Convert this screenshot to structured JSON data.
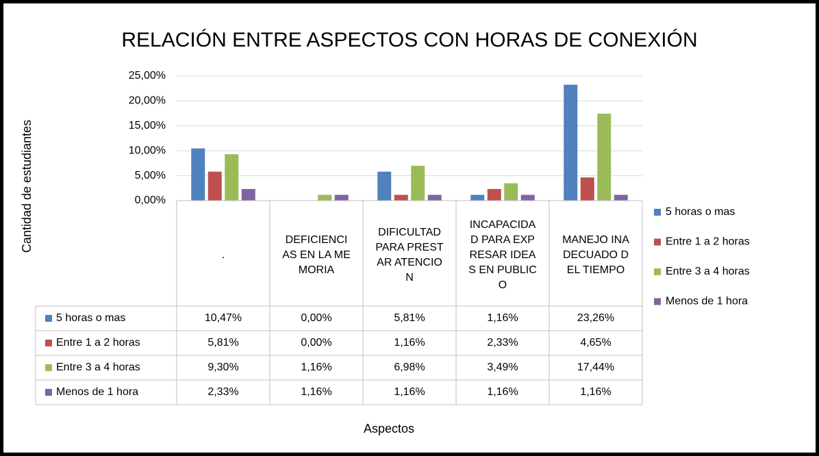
{
  "chart_data": {
    "type": "bar",
    "title": "RELACIÓN ENTRE ASPECTOS CON HORAS DE CONEXIÓN",
    "x_label": "Aspectos",
    "y_label": "Cantidad de estudiantes",
    "categories": [
      ".",
      "DEFICIENCIAS EN LA MEMORIA",
      "DIFICULTAD PARA PRESTAR ATENCION",
      "INCAPACIDAD PARA EXPRESAR IDEAS EN PUBLICO",
      "MANEJO INADECUADO DEL TIEMPO"
    ],
    "series": [
      {
        "name": "5 horas o mas",
        "color": "#4f81bd",
        "values": [
          10.47,
          0,
          5.81,
          1.16,
          23.26
        ],
        "value_labels": [
          "10,47%",
          "0,00%",
          "5,81%",
          "1,16%",
          "23,26%"
        ]
      },
      {
        "name": "Entre 1 a 2 horas",
        "color": "#c0504d",
        "values": [
          5.81,
          0,
          1.16,
          2.33,
          4.65
        ],
        "value_labels": [
          "5,81%",
          "0,00%",
          "1,16%",
          "2,33%",
          "4,65%"
        ]
      },
      {
        "name": "Entre 3 a 4 horas",
        "color": "#9bbb59",
        "values": [
          9.3,
          1.16,
          6.98,
          3.49,
          17.44
        ],
        "value_labels": [
          "9,30%",
          "1,16%",
          "6,98%",
          "3,49%",
          "17,44%"
        ]
      },
      {
        "name": "Menos de 1 hora",
        "color": "#8064a2",
        "values": [
          2.33,
          1.16,
          1.16,
          1.16,
          1.16
        ],
        "value_labels": [
          "2,33%",
          "1,16%",
          "1,16%",
          "1,16%",
          "1,16%"
        ]
      }
    ],
    "ylim": [
      0,
      25
    ],
    "yticks": [
      {
        "value": 0,
        "label": "0,00%"
      },
      {
        "value": 5,
        "label": "5,00%"
      },
      {
        "value": 10,
        "label": "10,00%"
      },
      {
        "value": 15,
        "label": "15,00%"
      },
      {
        "value": 20,
        "label": "20,00%"
      },
      {
        "value": 25,
        "label": "25,00%"
      }
    ],
    "grid": true,
    "legend": "right",
    "data_table": true
  }
}
